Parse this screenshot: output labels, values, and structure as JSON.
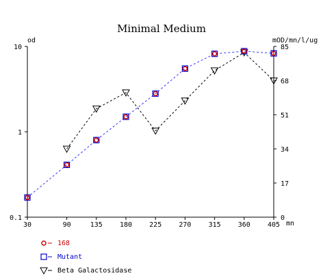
{
  "chart_data": {
    "type": "line",
    "title": "Minimal Medium",
    "x": [
      30,
      90,
      135,
      180,
      225,
      270,
      315,
      360,
      405
    ],
    "x_ticks": [
      "30",
      "90",
      "135",
      "180",
      "225",
      "270",
      "315",
      "360",
      "405"
    ],
    "xunit": "mn",
    "left_axis": {
      "label": "od",
      "scale": "log",
      "range": [
        0.1,
        10
      ],
      "ticks": [
        {
          "v": 10,
          "t": "10"
        },
        {
          "v": 1,
          "t": "1"
        },
        {
          "v": 0.1,
          "t": "0.1"
        }
      ]
    },
    "right_axis": {
      "label": "mOD/mn/l/ug",
      "scale": "linear",
      "range": [
        0,
        85
      ],
      "ticks": [
        {
          "v": 85,
          "t": "85"
        },
        {
          "v": 68,
          "t": "68"
        },
        {
          "v": 51,
          "t": "51"
        },
        {
          "v": 34,
          "t": "34"
        },
        {
          "v": 17,
          "t": "17"
        },
        {
          "v": 0,
          "t": "0"
        }
      ]
    },
    "series": [
      {
        "name": "168",
        "axis": "left",
        "marker": "circle",
        "color": "#cc0000",
        "values": [
          0.17,
          0.41,
          0.8,
          1.5,
          2.8,
          5.5,
          8.2,
          8.8,
          8.3
        ]
      },
      {
        "name": "Mutant",
        "axis": "left",
        "marker": "square",
        "color": "#0000cc",
        "line": "#3333ff",
        "values": [
          0.17,
          0.41,
          0.8,
          1.5,
          2.8,
          5.5,
          8.2,
          8.8,
          8.3
        ]
      },
      {
        "name": "Beta Galactosidase",
        "axis": "right",
        "marker": "triangle-down",
        "color": "#000000",
        "values": [
          null,
          34,
          54,
          62,
          43,
          58,
          73,
          82,
          68
        ]
      }
    ],
    "grid": false,
    "legend": "bottom-left"
  }
}
